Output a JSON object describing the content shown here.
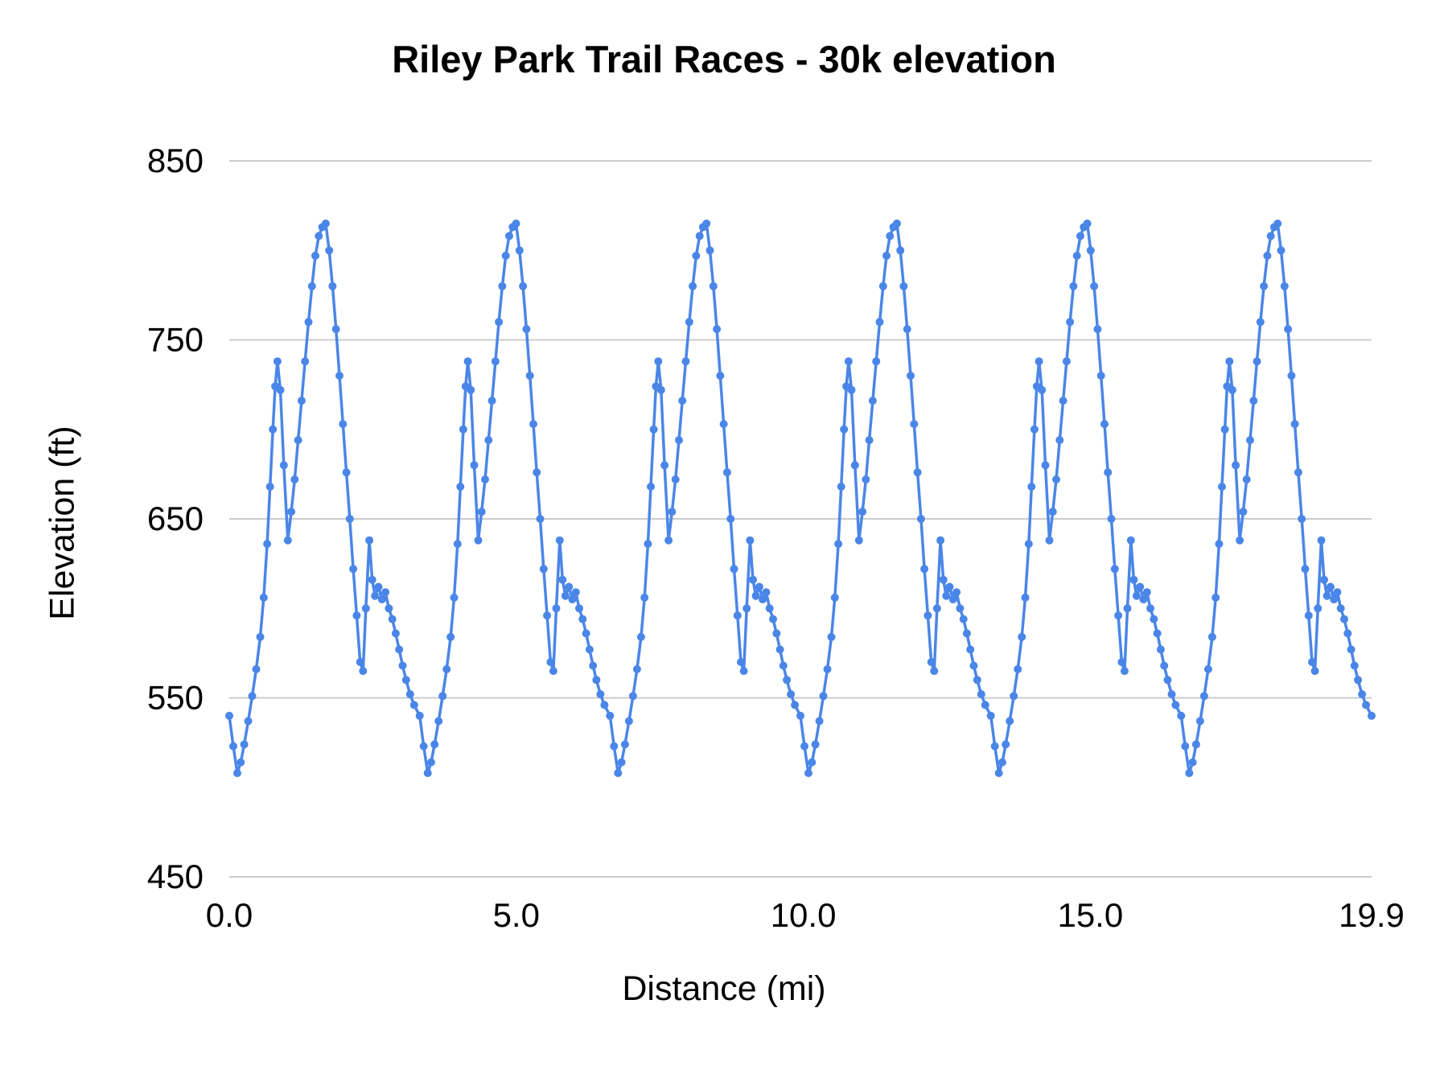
{
  "chart_data": {
    "type": "line",
    "title": "Riley Park Trail Races - 30k elevation",
    "xlabel": "Distance (mi)",
    "ylabel": "Elevation (ft)",
    "xlim": [
      0,
      19.9
    ],
    "ylim": [
      450,
      850
    ],
    "grid": "horizontal",
    "legend": "none",
    "colors": {
      "series": "#4a86e8",
      "gridline": "#cccccc",
      "text": "#000000",
      "background": "#ffffff"
    },
    "x_ticks": [
      {
        "value": 0,
        "label": "0.0"
      },
      {
        "value": 5,
        "label": "5.0"
      },
      {
        "value": 10,
        "label": "10.0"
      },
      {
        "value": 15,
        "label": "15.0"
      },
      {
        "value": 19.9,
        "label": "19.9"
      }
    ],
    "y_ticks": [
      {
        "value": 450,
        "label": "450"
      },
      {
        "value": 550,
        "label": "550"
      },
      {
        "value": 650,
        "label": "650"
      },
      {
        "value": 750,
        "label": "750"
      },
      {
        "value": 850,
        "label": "850"
      }
    ],
    "series": [
      {
        "name": "Elevation",
        "color": "#4a86e8",
        "marker": "circle",
        "structure": "six identical laps repeated over the full distance",
        "laps": 6,
        "lap_length_mi": 3.3167,
        "lap_offsets_mi": [
          0.0,
          0.07,
          0.14,
          0.2,
          0.26,
          0.33,
          0.4,
          0.47,
          0.54,
          0.6,
          0.66,
          0.71,
          0.76,
          0.8,
          0.84,
          0.89,
          0.95,
          1.02,
          1.08,
          1.14,
          1.2,
          1.26,
          1.32,
          1.38,
          1.44,
          1.5,
          1.56,
          1.62,
          1.68,
          1.74,
          1.8,
          1.86,
          1.92,
          1.98,
          2.04,
          2.1,
          2.16,
          2.22,
          2.28,
          2.33,
          2.38,
          2.44,
          2.49,
          2.54,
          2.6,
          2.66,
          2.72,
          2.78,
          2.84,
          2.9,
          2.96,
          3.02,
          3.08,
          3.15,
          3.22
        ],
        "lap_elevations_ft": [
          540,
          523,
          508,
          514,
          524,
          537,
          551,
          566,
          584,
          606,
          636,
          668,
          700,
          724,
          738,
          722,
          680,
          638,
          654,
          672,
          694,
          716,
          738,
          760,
          780,
          797,
          808,
          813,
          815,
          800,
          780,
          756,
          730,
          703,
          676,
          650,
          622,
          596,
          570,
          565,
          600,
          638,
          616,
          607,
          612,
          605,
          609,
          600,
          594,
          586,
          577,
          568,
          560,
          552,
          546
        ],
        "end_point": {
          "x": 19.9,
          "y": 540
        }
      }
    ]
  }
}
